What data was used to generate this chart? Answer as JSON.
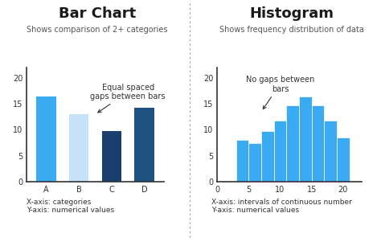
{
  "bar_chart": {
    "title": "Bar Chart",
    "subtitle": "Shows comparison of 2+ categories",
    "categories": [
      "A",
      "B",
      "C",
      "D"
    ],
    "values": [
      16.5,
      13.0,
      9.8,
      14.3
    ],
    "colors": [
      "#3aabf0",
      "#c5e3f7",
      "#1a3f6f",
      "#1e5080"
    ],
    "annotation_text": "Equal spaced\ngaps between bars",
    "xlabel_note": "X-axis: categories\nY-axis: numerical values",
    "ylim": [
      0,
      22
    ],
    "yticks": [
      0,
      5,
      10,
      15,
      20
    ]
  },
  "histogram": {
    "title": "Histogram",
    "subtitle": "Shows frequency distribution of data",
    "bin_edges": [
      3,
      5,
      7,
      9,
      11,
      13,
      15,
      17,
      19,
      21
    ],
    "values": [
      8.0,
      7.5,
      9.8,
      11.8,
      14.8,
      16.5,
      14.8,
      11.8,
      8.5
    ],
    "color": "#3aabf0",
    "annotation_text": "No gaps between\nbars",
    "xlabel_note": "X-axis: intervals of continuous number\nY-axis: numerical values",
    "ylim": [
      0,
      22
    ],
    "yticks": [
      0,
      5,
      10,
      15,
      20
    ],
    "xticks": [
      0,
      5,
      10,
      15,
      20
    ]
  },
  "background_color": "#ffffff",
  "divider_color": "#999999",
  "title_fontsize": 13,
  "subtitle_fontsize": 7,
  "tick_fontsize": 7,
  "note_fontsize": 6.5,
  "annotation_fontsize": 7
}
